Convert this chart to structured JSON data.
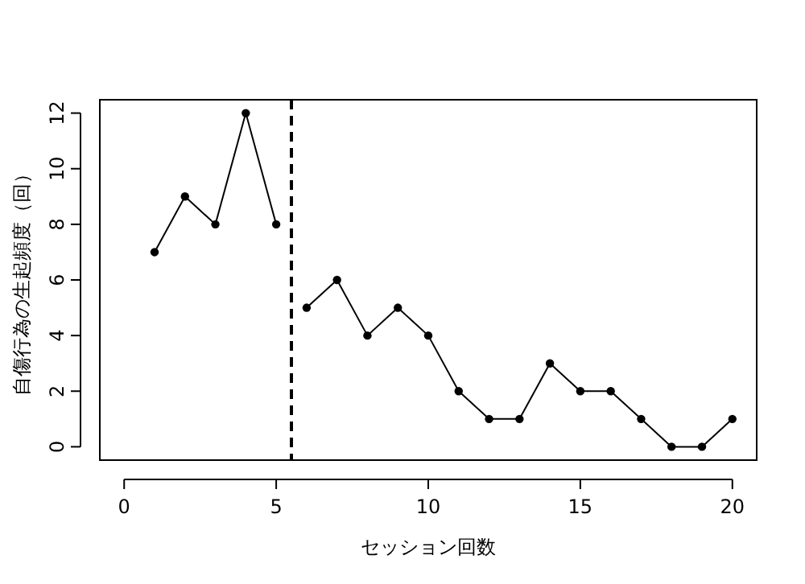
{
  "chart_data": {
    "type": "line",
    "xlabel": "セッション回数",
    "ylabel": "自傷行為の生起頻度（回）",
    "x": [
      1,
      2,
      3,
      4,
      5,
      6,
      7,
      8,
      9,
      10,
      11,
      12,
      13,
      14,
      15,
      16,
      17,
      18,
      19,
      20
    ],
    "series": [
      {
        "color": "#000000",
        "values": [
          7,
          9,
          8,
          12,
          8,
          null,
          null,
          null,
          null,
          null,
          null,
          null,
          null,
          null,
          null,
          null,
          null,
          null,
          null,
          null
        ]
      },
      {
        "color": "#000000",
        "values": [
          null,
          null,
          null,
          null,
          null,
          5,
          6,
          4,
          5,
          4,
          2,
          1,
          1,
          3,
          2,
          2,
          1,
          0,
          0,
          1
        ]
      }
    ],
    "xlim": [
      -0.8,
      20.8
    ],
    "ylim": [
      -0.48,
      12.48
    ],
    "xticks": [
      0,
      5,
      10,
      15,
      20
    ],
    "yticks": [
      0,
      2,
      4,
      6,
      8,
      10,
      12
    ],
    "ref_lines": [
      {
        "axis": "x",
        "value": 5.5,
        "color": "#000000",
        "line_style": "dashed"
      }
    ],
    "marker": "circle",
    "line_style": "solid",
    "grid": false
  }
}
